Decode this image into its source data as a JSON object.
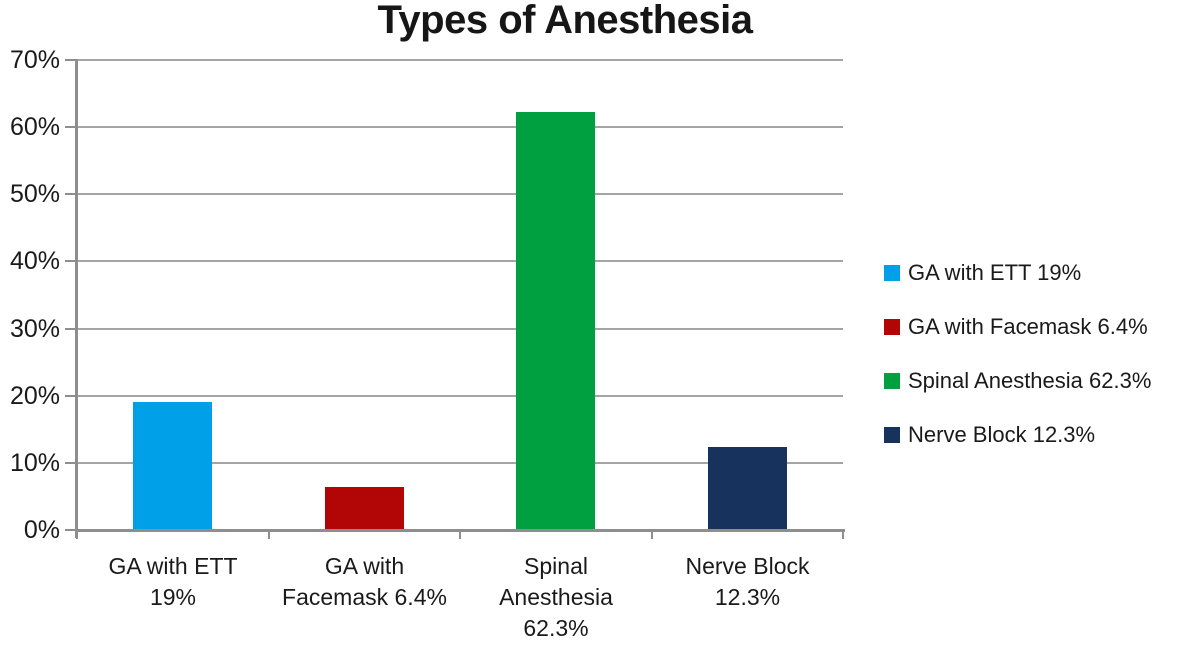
{
  "chart_data": {
    "type": "bar",
    "title": "Types of Anesthesia",
    "categories": [
      "GA with ETT 19%",
      "GA with Facemask 6.4%",
      "Spinal Anesthesia 62.3%",
      "Nerve Block 12.3%"
    ],
    "category_label_lines": [
      [
        "GA with ETT",
        "19%"
      ],
      [
        "GA with",
        "Facemask 6.4%"
      ],
      [
        "Spinal",
        "Anesthesia",
        "62.3%"
      ],
      [
        "Nerve Block",
        "12.3%"
      ]
    ],
    "values": [
      19,
      6.4,
      62.3,
      12.3
    ],
    "unit": "%",
    "bar_colors": [
      "#00A0E8",
      "#B20606",
      "#00A040",
      "#17335D"
    ],
    "xlabel": "",
    "ylabel": "",
    "ylim": [
      0,
      70
    ],
    "y_tick_step": 10,
    "y_tick_labels": [
      "0%",
      "10%",
      "20%",
      "30%",
      "40%",
      "50%",
      "60%",
      "70%"
    ],
    "grid": "horizontal",
    "gridline_color": "#A4A4A4",
    "axis_color": "#8E8E8E",
    "text_color": "#1A1A1A",
    "background_color": "#FFFFFF",
    "legend": {
      "position": "right",
      "entries": [
        {
          "label": "GA with ETT 19%",
          "color": "#00A0E8"
        },
        {
          "label": "GA with Facemask 6.4%",
          "color": "#B20606"
        },
        {
          "label": "Spinal Anesthesia 62.3%",
          "color": "#00A040"
        },
        {
          "label": "Nerve Block 12.3%",
          "color": "#17335D"
        }
      ]
    }
  }
}
